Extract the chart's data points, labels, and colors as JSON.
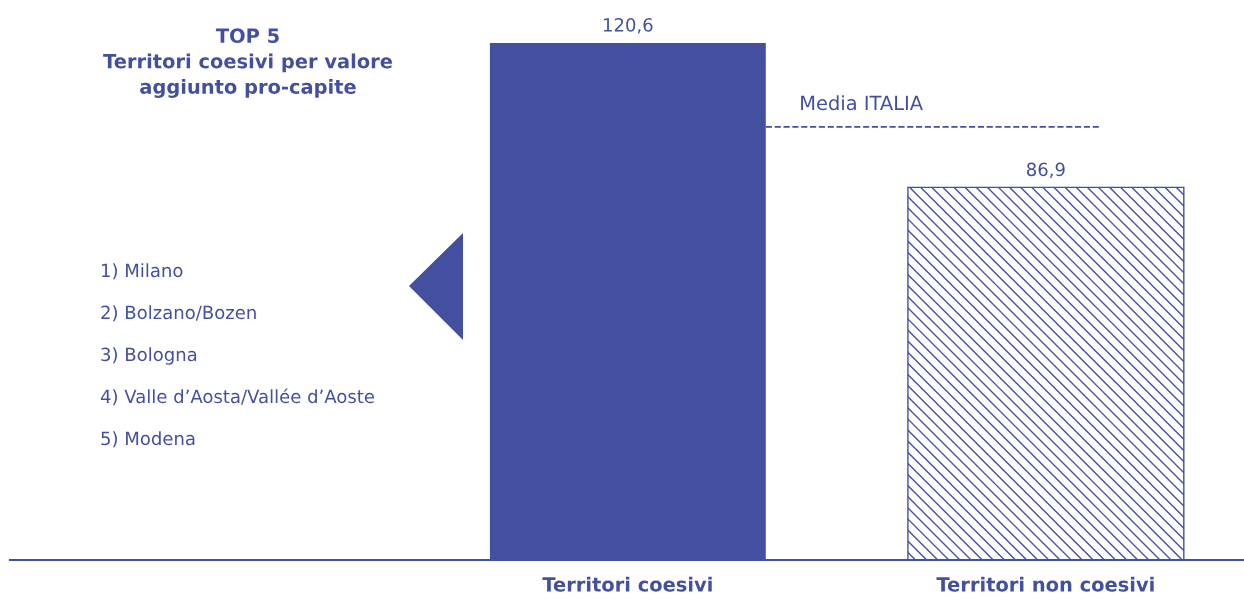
{
  "chart_data": {
    "type": "bar",
    "title": "TOP 5\nTerritori coesivi per valore\naggiunto pro-capite",
    "categories": [
      "Territori coesivi",
      "Territori non coesivi"
    ],
    "values": [
      120.6,
      86.9
    ],
    "value_labels": [
      "120,6",
      "86,9"
    ],
    "colors": [
      "#4350a0",
      "#4350a0"
    ],
    "ref_lines": [
      {
        "axis": "y",
        "value": 101,
        "label": "Media ITALIA",
        "color": "#4350a0",
        "line_style": "dashed"
      }
    ],
    "annotations": [
      "1) Milano",
      "2) Bolzano/Bozen",
      "3) Bologna",
      "4) Valle d’Aosta/Vallée d’Aoste",
      "5) Modena"
    ],
    "grid": false
  }
}
